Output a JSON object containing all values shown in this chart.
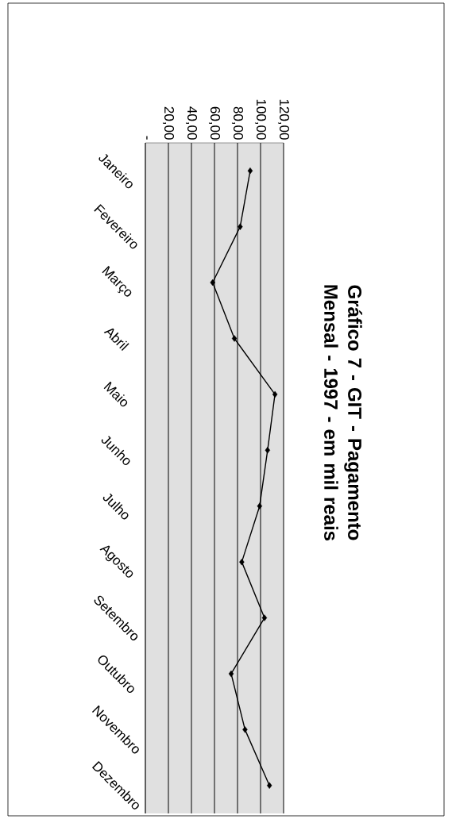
{
  "chart_data": {
    "type": "line",
    "title": "Gráfico 7 - GIT - Pagamento  Mensal - 1997 - em mil reais",
    "orientation": "horizontal",
    "categories": [
      "Janeiro",
      "Fevereiro",
      "Março",
      "Abril",
      "Maio",
      "Junho",
      "Julho",
      "Agosto",
      "Setembro",
      "Outubro",
      "Novembro",
      "Dezembro"
    ],
    "series": [
      {
        "color": "#000000",
        "values": [
          91.0,
          82.3,
          58.4,
          77.3,
          112.5,
          106.1,
          99.2,
          83.7,
          103.4,
          74.5,
          86.5,
          107.7
        ]
      }
    ],
    "xlim": [
      0,
      120
    ],
    "xticks": [
      {
        "value": 0,
        "label": "-"
      },
      {
        "value": 20,
        "label": "20,00"
      },
      {
        "value": 40,
        "label": "40,00"
      },
      {
        "value": 60,
        "label": "60,00"
      },
      {
        "value": 80,
        "label": "80,00"
      },
      {
        "value": 100,
        "label": "100,00"
      },
      {
        "value": 120,
        "label": "120,00"
      }
    ],
    "grid": "x",
    "marker": "diamond",
    "line_style": "solid"
  }
}
